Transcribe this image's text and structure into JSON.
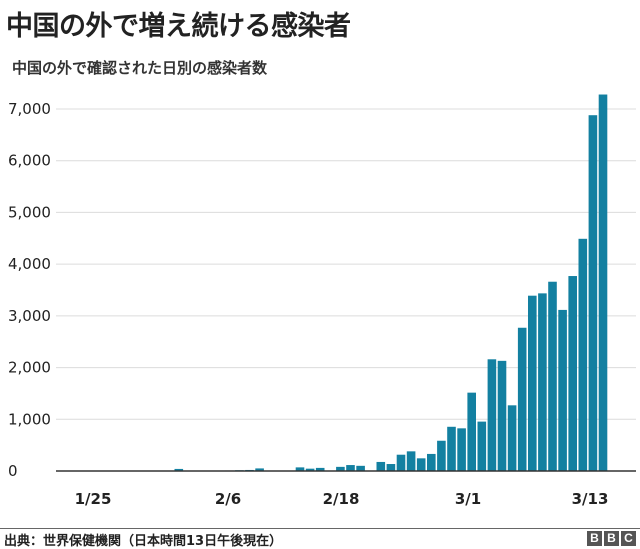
{
  "chart_data": {
    "type": "bar",
    "title": "中国の外で増え続ける感染者",
    "subtitle": "中国の外で確認された日別の感染者数",
    "xlabel": "",
    "ylabel": "",
    "ylim": [
      0,
      7000
    ],
    "yticks": [
      0,
      1000,
      2000,
      3000,
      4000,
      5000,
      6000,
      7000
    ],
    "ytick_labels": [
      "0",
      "1,000",
      "2,000",
      "3,000",
      "4,000",
      "5,000",
      "6,000",
      "7,000"
    ],
    "xtick_labels": [
      "1/25",
      "2/6",
      "2/18",
      "3/1",
      "3/13"
    ],
    "grid": "horizontal",
    "bar_color": "#1380A1",
    "categories": [
      "1/25",
      "1/26",
      "1/27",
      "1/28",
      "1/29",
      "1/30",
      "1/31",
      "2/1",
      "2/2",
      "2/3",
      "2/4",
      "2/5",
      "2/6",
      "2/7",
      "2/8",
      "2/9",
      "2/10",
      "2/11",
      "2/12",
      "2/13",
      "2/14",
      "2/15",
      "2/16",
      "2/17",
      "2/18",
      "2/19",
      "2/20",
      "2/21",
      "2/22",
      "2/23",
      "2/24",
      "2/25",
      "2/26",
      "2/27",
      "2/28",
      "2/29",
      "3/1",
      "3/2",
      "3/3",
      "3/4",
      "3/5",
      "3/6",
      "3/7",
      "3/8",
      "3/9",
      "3/10",
      "3/11",
      "3/12",
      "3/13"
    ],
    "values": [
      3,
      5,
      5,
      5,
      5,
      8,
      40,
      5,
      5,
      5,
      5,
      10,
      15,
      20,
      50,
      5,
      5,
      5,
      70,
      45,
      60,
      5,
      80,
      115,
      100,
      0,
      175,
      135,
      315,
      380,
      245,
      330,
      585,
      855,
      825,
      1515,
      955,
      2160,
      2130,
      1270,
      2770,
      3390,
      3435,
      3660,
      3115,
      3770,
      4490,
      6880,
      7280
    ]
  },
  "footer": {
    "source": "出典：世界保健機関（日本時間13日午後現在）",
    "logo": "BBC"
  }
}
